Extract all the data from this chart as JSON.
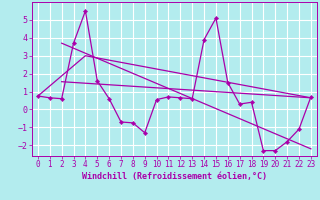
{
  "xlabel": "Windchill (Refroidissement éolien,°C)",
  "background_color": "#b3ecee",
  "grid_color": "#ffffff",
  "line_color": "#aa00aa",
  "xlim": [
    -0.5,
    23.5
  ],
  "ylim": [
    -2.6,
    6.0
  ],
  "yticks": [
    -2,
    -1,
    0,
    1,
    2,
    3,
    4,
    5
  ],
  "xticks": [
    0,
    1,
    2,
    3,
    4,
    5,
    6,
    7,
    8,
    9,
    10,
    11,
    12,
    13,
    14,
    15,
    16,
    17,
    18,
    19,
    20,
    21,
    22,
    23
  ],
  "series1_x": [
    0,
    1,
    2,
    3,
    4,
    5,
    6,
    7,
    8,
    9,
    10,
    11,
    12,
    13,
    14,
    15,
    16,
    17,
    18,
    19,
    20,
    21,
    22,
    23
  ],
  "series1_y": [
    0.75,
    0.65,
    0.6,
    3.7,
    5.5,
    1.6,
    0.6,
    -0.7,
    -0.75,
    -1.3,
    0.55,
    0.7,
    0.65,
    0.6,
    3.9,
    5.1,
    1.5,
    0.3,
    0.4,
    -2.3,
    -2.3,
    -1.8,
    -1.1,
    0.7
  ],
  "series2_x": [
    2,
    23
  ],
  "series2_y": [
    3.7,
    -2.2
  ],
  "series3_x": [
    2,
    23
  ],
  "series3_y": [
    1.55,
    0.65
  ],
  "series4_x": [
    0,
    4,
    23
  ],
  "series4_y": [
    0.75,
    3.0,
    0.65
  ]
}
